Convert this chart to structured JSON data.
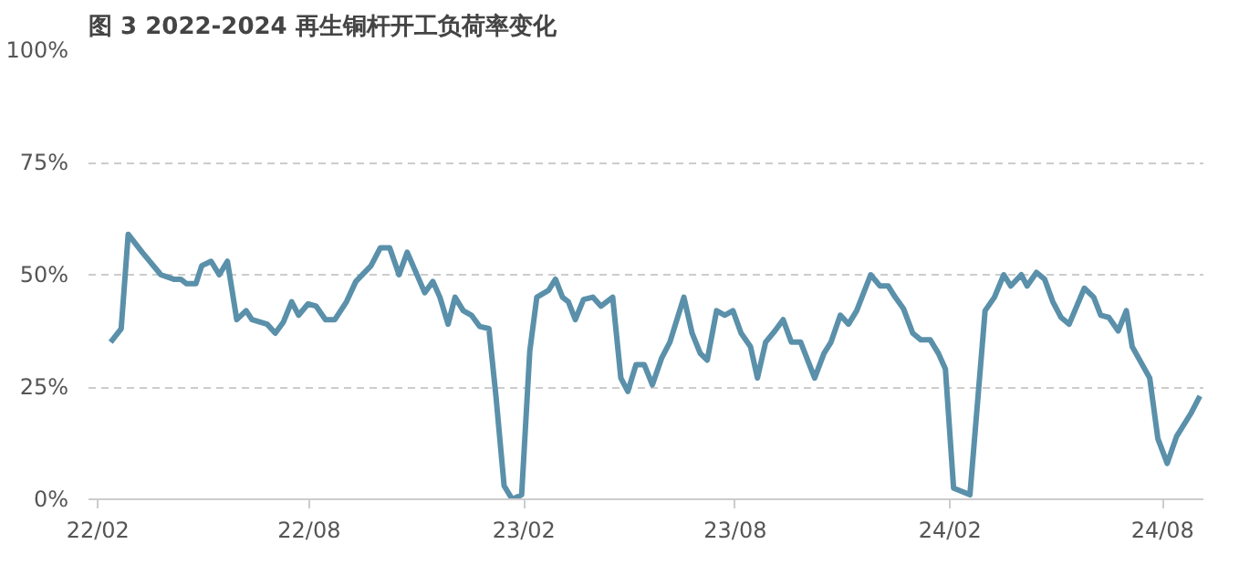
{
  "chart_data": {
    "type": "line",
    "title": "图 3 2022-2024 再生铜杆开工负荷率变化",
    "x": [
      "2022-02-12",
      "2022-02-21",
      "2022-02-27",
      "2022-03-11",
      "2022-03-27",
      "2022-04-07",
      "2022-04-13",
      "2022-04-18",
      "2022-04-26",
      "2022-05-01",
      "2022-05-09",
      "2022-05-16",
      "2022-05-23",
      "2022-05-31",
      "2022-06-08",
      "2022-06-13",
      "2022-06-26",
      "2022-07-03",
      "2022-07-10",
      "2022-07-17",
      "2022-07-23",
      "2022-07-31",
      "2022-08-07",
      "2022-08-15",
      "2022-08-23",
      "2022-09-02",
      "2022-09-10",
      "2022-09-23",
      "2022-10-01",
      "2022-10-09",
      "2022-10-17",
      "2022-10-24",
      "2022-11-08",
      "2022-11-15",
      "2022-11-21",
      "2022-11-28",
      "2022-12-04",
      "2022-12-11",
      "2022-12-18",
      "2022-12-25",
      "2023-01-02",
      "2023-01-08",
      "2023-01-15",
      "2023-01-22",
      "2023-01-30",
      "2023-02-06",
      "2023-02-12",
      "2023-02-22",
      "2023-02-28",
      "2023-03-06",
      "2023-03-11",
      "2023-03-17",
      "2023-03-24",
      "2023-04-01",
      "2023-04-08",
      "2023-04-18",
      "2023-04-25",
      "2023-05-01",
      "2023-05-08",
      "2023-05-15",
      "2023-05-22",
      "2023-05-30",
      "2023-06-06",
      "2023-06-18",
      "2023-06-25",
      "2023-07-02",
      "2023-07-08",
      "2023-07-16",
      "2023-07-23",
      "2023-07-30",
      "2023-08-06",
      "2023-08-14",
      "2023-08-20",
      "2023-08-27",
      "2023-09-04",
      "2023-09-11",
      "2023-09-18",
      "2023-09-26",
      "2023-10-08",
      "2023-10-16",
      "2023-10-22",
      "2023-10-30",
      "2023-11-06",
      "2023-11-13",
      "2023-11-25",
      "2023-12-03",
      "2023-12-10",
      "2023-12-16",
      "2023-12-23",
      "2023-12-31",
      "2024-01-07",
      "2024-01-15",
      "2024-01-22",
      "2024-01-28",
      "2024-02-04",
      "2024-02-18",
      "2024-03-02",
      "2024-03-10",
      "2024-03-18",
      "2024-03-24",
      "2024-04-02",
      "2024-04-07",
      "2024-04-15",
      "2024-04-22",
      "2024-04-29",
      "2024-05-06",
      "2024-05-13",
      "2024-05-26",
      "2024-06-03",
      "2024-06-09",
      "2024-06-16",
      "2024-06-24",
      "2024-07-01",
      "2024-07-06",
      "2024-07-21",
      "2024-07-28",
      "2024-08-05",
      "2024-08-13",
      "2024-08-25",
      "2024-09-02"
    ],
    "series": [
      {
        "color": "#5a90aa",
        "values": [
          35,
          38,
          59,
          55,
          50,
          49,
          49,
          48,
          48,
          52,
          53,
          50,
          53,
          40,
          42,
          40,
          39,
          37,
          39.5,
          44,
          41,
          43.5,
          43,
          40,
          40,
          44,
          48.5,
          52,
          56,
          56,
          50,
          55,
          46,
          48.5,
          45,
          39,
          45,
          42,
          41,
          38.5,
          38,
          23,
          3,
          0,
          1,
          33,
          45,
          46.5,
          49,
          45,
          44,
          40,
          44.5,
          45,
          43,
          45,
          27,
          24,
          30,
          30,
          25.5,
          31.5,
          35,
          45,
          37,
          32.5,
          31,
          42,
          41,
          42,
          37,
          34,
          27,
          35,
          37.5,
          40,
          35,
          35,
          27,
          32.5,
          35,
          41,
          39,
          42,
          50,
          47.5,
          47.5,
          45,
          42.5,
          37,
          35.5,
          35.5,
          32.5,
          29,
          2.5,
          1,
          42,
          45,
          50,
          47.5,
          50,
          47.5,
          50.5,
          49,
          44,
          40.5,
          39,
          47,
          45,
          41,
          40.5,
          37.5,
          42,
          34,
          27,
          13.5,
          8,
          14,
          19,
          23
        ]
      }
    ],
    "xlim": [
      "2022-01-24",
      "2024-09-05"
    ],
    "xticks": [
      {
        "value": "2022-02-01",
        "label": "22/02"
      },
      {
        "value": "2022-08-01",
        "label": "22/08"
      },
      {
        "value": "2023-02-01",
        "label": "23/02"
      },
      {
        "value": "2023-08-01",
        "label": "23/08"
      },
      {
        "value": "2024-02-01",
        "label": "24/02"
      },
      {
        "value": "2024-08-01",
        "label": "24/08"
      }
    ],
    "ylim": [
      0,
      100
    ],
    "yticks": [
      {
        "value": 0,
        "label": "0%"
      },
      {
        "value": 25,
        "label": "25%"
      },
      {
        "value": 50,
        "label": "50%"
      },
      {
        "value": 75,
        "label": "75%"
      },
      {
        "value": 100,
        "label": "100%"
      }
    ],
    "grid": "y",
    "line_style": "solid",
    "marker": "none"
  }
}
